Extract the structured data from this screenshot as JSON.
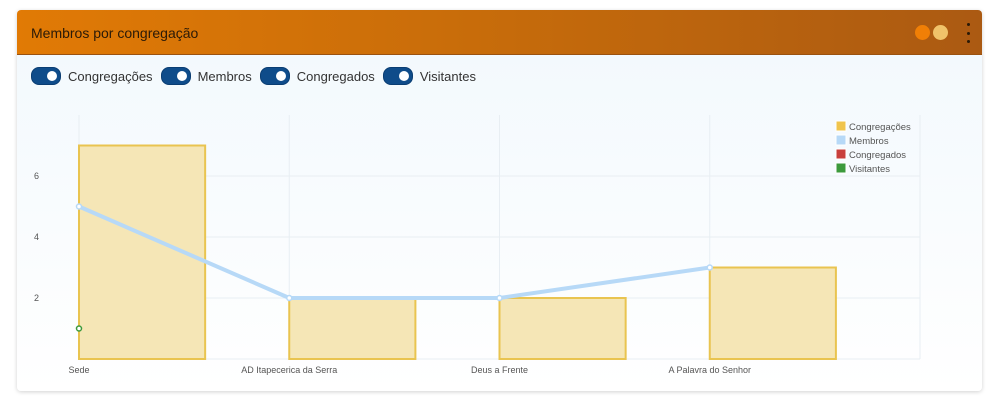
{
  "card": {
    "title": "Membros por congregação",
    "header_colors": [
      "#e17a05",
      "#ab5a12"
    ],
    "indicator_dots": [
      "#f07f06",
      "#f0c36a"
    ],
    "menu_icon": "kebab-menu-icon"
  },
  "toggles": [
    {
      "label": "Congregações",
      "checked": true
    },
    {
      "label": "Membros",
      "checked": true
    },
    {
      "label": "Congregados",
      "checked": true
    },
    {
      "label": "Visitantes",
      "checked": true
    }
  ],
  "chart_data": {
    "type": "bar",
    "title": "",
    "xlabel": "",
    "ylabel": "",
    "categories": [
      "Sede",
      "AD Itapecerica da Serra",
      "Deus a Frente",
      "A Palavra do Senhor"
    ],
    "ylim": [
      0,
      8
    ],
    "yticks": [
      2,
      4,
      6
    ],
    "grid": true,
    "legend_position": "top-right",
    "series": [
      {
        "name": "Congregações",
        "type": "bar",
        "color": "#f5e6b6",
        "stroke": "#e9c450",
        "values": [
          7,
          2,
          2,
          3
        ]
      },
      {
        "name": "Membros",
        "type": "line",
        "color": "#b7d9f7",
        "values": [
          5,
          2,
          2,
          3
        ]
      },
      {
        "name": "Congregados",
        "type": "line",
        "color": "#c9403c",
        "values": [
          null,
          null,
          null,
          null
        ]
      },
      {
        "name": "Visitantes",
        "type": "line",
        "color": "#3c9a3c",
        "values": [
          1,
          null,
          null,
          null
        ]
      }
    ]
  }
}
